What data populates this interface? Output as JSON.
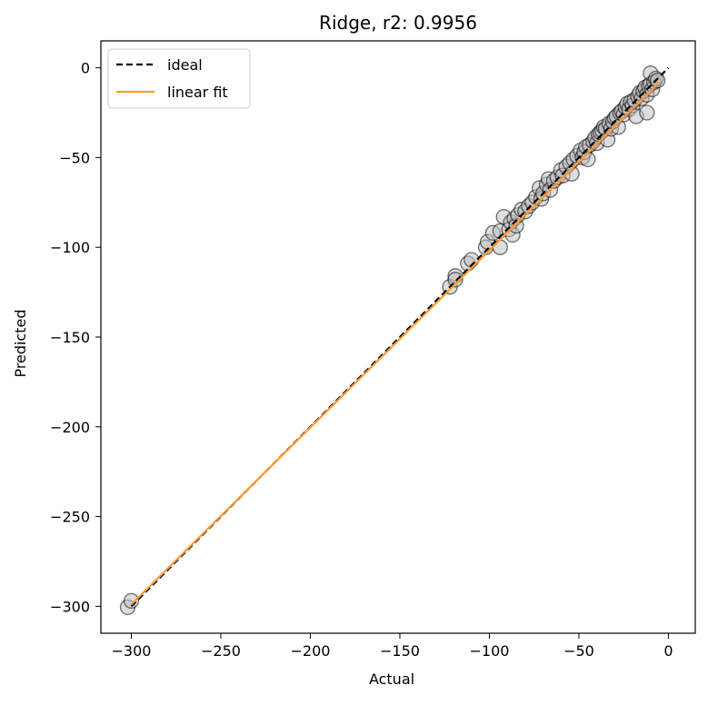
{
  "chart_data": {
    "type": "scatter",
    "title": "Ridge, r2: 0.9956",
    "xlabel": "Actual",
    "ylabel": "Predicted",
    "xlim": [
      -317,
      15
    ],
    "ylim": [
      -315,
      15
    ],
    "xticks": [
      -300,
      -250,
      -200,
      -150,
      -100,
      -50,
      0
    ],
    "yticks": [
      0,
      -50,
      -100,
      -150,
      -200,
      -250,
      -300
    ],
    "xtick_labels": [
      "−300",
      "−250",
      "−200",
      "−150",
      "−100",
      "−50",
      "0"
    ],
    "ytick_labels": [
      "0",
      "−50",
      "−100",
      "−150",
      "−200",
      "−250",
      "−300"
    ],
    "grid": false,
    "legend_position": "top-left",
    "legend": [
      {
        "label": "ideal",
        "style": "dashed",
        "color": "#000000"
      },
      {
        "label": "linear fit",
        "style": "solid",
        "color": "#ff9933"
      }
    ],
    "ideal_line": {
      "x": [
        -300,
        0
      ],
      "y": [
        -300,
        0
      ]
    },
    "fit_line": {
      "x": [
        -300,
        -5
      ],
      "y": [
        -299,
        -8
      ]
    },
    "point_color": "#bbbbbb",
    "points": [
      [
        -302,
        -300.5
      ],
      [
        -300,
        -297
      ],
      [
        -122,
        -122
      ],
      [
        -119,
        -116
      ],
      [
        -119,
        -118
      ],
      [
        -112,
        -109
      ],
      [
        -110,
        -107
      ],
      [
        -102,
        -100
      ],
      [
        -101,
        -97
      ],
      [
        -98,
        -92
      ],
      [
        -94,
        -100
      ],
      [
        -94,
        -91
      ],
      [
        -92,
        -83
      ],
      [
        -89,
        -90
      ],
      [
        -88,
        -86
      ],
      [
        -87,
        -93
      ],
      [
        -86,
        -84
      ],
      [
        -85,
        -88
      ],
      [
        -84,
        -82
      ],
      [
        -82,
        -79
      ],
      [
        -80,
        -80
      ],
      [
        -78,
        -77
      ],
      [
        -76,
        -75
      ],
      [
        -74,
        -72
      ],
      [
        -72,
        -67
      ],
      [
        -71,
        -73
      ],
      [
        -70,
        -70
      ],
      [
        -68,
        -65
      ],
      [
        -67,
        -62
      ],
      [
        -66,
        -68
      ],
      [
        -64,
        -63
      ],
      [
        -62,
        -61
      ],
      [
        -60,
        -57
      ],
      [
        -59,
        -60
      ],
      [
        -57,
        -55
      ],
      [
        -55,
        -53
      ],
      [
        -54,
        -59
      ],
      [
        -53,
        -51
      ],
      [
        -51,
        -49
      ],
      [
        -49,
        -46
      ],
      [
        -48,
        -50
      ],
      [
        -47,
        -47
      ],
      [
        -46,
        -44
      ],
      [
        -45,
        -51
      ],
      [
        -44,
        -43
      ],
      [
        -42,
        -41
      ],
      [
        -41,
        -39
      ],
      [
        -40,
        -42
      ],
      [
        -39,
        -37
      ],
      [
        -38,
        -36
      ],
      [
        -37,
        -35
      ],
      [
        -36,
        -33
      ],
      [
        -35,
        -34
      ],
      [
        -34,
        -40
      ],
      [
        -33,
        -31
      ],
      [
        -32,
        -34
      ],
      [
        -31,
        -30
      ],
      [
        -30,
        -28
      ],
      [
        -29,
        -27
      ],
      [
        -28,
        -33
      ],
      [
        -27,
        -25
      ],
      [
        -26,
        -24
      ],
      [
        -25,
        -26
      ],
      [
        -24,
        -22
      ],
      [
        -23,
        -20
      ],
      [
        -22,
        -23
      ],
      [
        -21,
        -19
      ],
      [
        -20,
        -21
      ],
      [
        -19,
        -18
      ],
      [
        -18,
        -27
      ],
      [
        -17,
        -16
      ],
      [
        -16,
        -14
      ],
      [
        -15,
        -17
      ],
      [
        -14,
        -13
      ],
      [
        -13,
        -11
      ],
      [
        -12,
        -25
      ],
      [
        -12,
        -15
      ],
      [
        -11,
        -10
      ],
      [
        -10,
        -9
      ],
      [
        -10,
        -3
      ],
      [
        -9,
        -12
      ],
      [
        -8,
        -8
      ],
      [
        -7,
        -6
      ],
      [
        -6,
        -7
      ]
    ]
  }
}
